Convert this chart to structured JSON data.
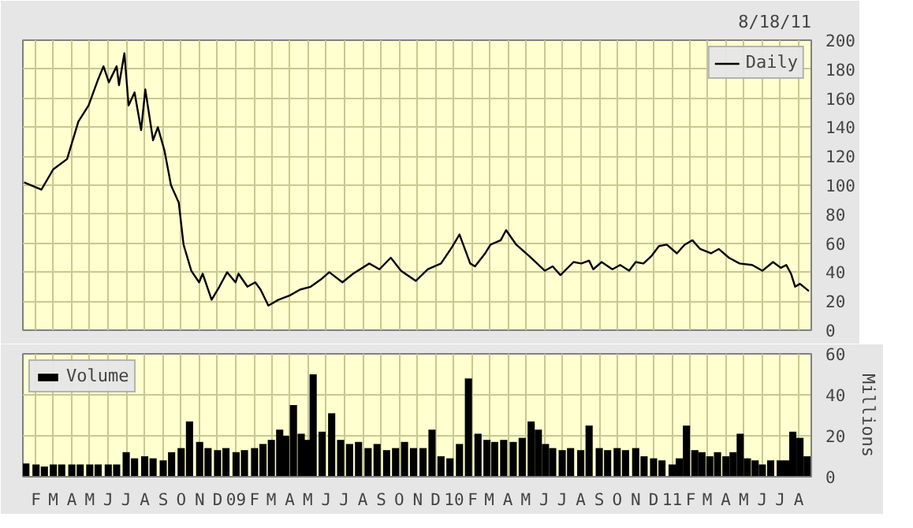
{
  "chart_data": [
    {
      "type": "line",
      "annotations": [
        "8/18/11"
      ],
      "legend": "top right",
      "grid": true,
      "tick_labels": "y",
      "xlim": [
        "2008-01-10",
        "2011-08-22"
      ],
      "ylim": [
        0,
        200
      ],
      "yticks": [
        0,
        20,
        40,
        60,
        80,
        100,
        120,
        140,
        160,
        180,
        200
      ],
      "xticks": [
        {
          "value": "2008-02-01",
          "label": null
        },
        {
          "value": "2008-03-01",
          "label": null
        },
        {
          "value": "2008-04-01",
          "label": null
        },
        {
          "value": "2008-05-01",
          "label": null
        },
        {
          "value": "2008-06-01",
          "label": null
        },
        {
          "value": "2008-07-01",
          "label": null
        },
        {
          "value": "2008-08-01",
          "label": null
        },
        {
          "value": "2008-09-01",
          "label": null
        },
        {
          "value": "2008-10-01",
          "label": null
        },
        {
          "value": "2008-11-01",
          "label": null
        },
        {
          "value": "2008-12-01",
          "label": null
        },
        {
          "value": "2009-01-01",
          "label": null
        },
        {
          "value": "2009-02-01",
          "label": null
        },
        {
          "value": "2009-03-01",
          "label": null
        },
        {
          "value": "2009-04-01",
          "label": null
        },
        {
          "value": "2009-05-01",
          "label": null
        },
        {
          "value": "2009-06-01",
          "label": null
        },
        {
          "value": "2009-07-01",
          "label": null
        },
        {
          "value": "2009-08-01",
          "label": null
        },
        {
          "value": "2009-09-01",
          "label": null
        },
        {
          "value": "2009-10-01",
          "label": null
        },
        {
          "value": "2009-11-01",
          "label": null
        },
        {
          "value": "2009-12-01",
          "label": null
        },
        {
          "value": "2010-01-01",
          "label": null
        },
        {
          "value": "2010-02-01",
          "label": null
        },
        {
          "value": "2010-03-01",
          "label": null
        },
        {
          "value": "2010-04-01",
          "label": null
        },
        {
          "value": "2010-05-01",
          "label": null
        },
        {
          "value": "2010-06-01",
          "label": null
        },
        {
          "value": "2010-07-01",
          "label": null
        },
        {
          "value": "2010-08-01",
          "label": null
        },
        {
          "value": "2010-09-01",
          "label": null
        },
        {
          "value": "2010-10-01",
          "label": null
        },
        {
          "value": "2010-11-01",
          "label": null
        },
        {
          "value": "2010-12-01",
          "label": null
        },
        {
          "value": "2011-01-01",
          "label": null
        },
        {
          "value": "2011-02-01",
          "label": null
        },
        {
          "value": "2011-03-01",
          "label": null
        },
        {
          "value": "2011-04-01",
          "label": null
        },
        {
          "value": "2011-05-01",
          "label": null
        },
        {
          "value": "2011-06-01",
          "label": null
        },
        {
          "value": "2011-07-01",
          "label": null
        },
        {
          "value": "2011-08-01",
          "label": null
        }
      ],
      "x": [
        "2008-01-12",
        "2008-02-10",
        "2008-03-01",
        "2008-03-24",
        "2008-04-12",
        "2008-04-29",
        "2008-05-15",
        "2008-05-24",
        "2008-06-02",
        "2008-06-15",
        "2008-06-19",
        "2008-06-28",
        "2008-07-05",
        "2008-07-15",
        "2008-07-26",
        "2008-08-02",
        "2008-08-15",
        "2008-08-23",
        "2008-09-03",
        "2008-09-14",
        "2008-09-27",
        "2008-10-05",
        "2008-10-18",
        "2008-10-31",
        "2008-11-06",
        "2008-11-21",
        "2008-12-04",
        "2008-12-17",
        "2008-12-31",
        "2009-01-05",
        "2009-01-20",
        "2009-02-02",
        "2009-02-11",
        "2009-02-24",
        "2009-03-13",
        "2009-04-01",
        "2009-04-18",
        "2009-05-06",
        "2009-05-23",
        "2009-06-06",
        "2009-06-28",
        "2009-07-16",
        "2009-08-12",
        "2009-08-29",
        "2009-09-17",
        "2009-10-04",
        "2009-10-29",
        "2009-11-18",
        "2009-12-10",
        "2009-12-28",
        "2010-01-10",
        "2010-01-28",
        "2010-02-05",
        "2010-02-22",
        "2010-03-03",
        "2010-03-20",
        "2010-03-29",
        "2010-04-15",
        "2010-05-07",
        "2010-05-20",
        "2010-06-02",
        "2010-06-15",
        "2010-06-28",
        "2010-07-20",
        "2010-08-02",
        "2010-08-15",
        "2010-08-22",
        "2010-09-05",
        "2010-09-23",
        "2010-10-06",
        "2010-10-21",
        "2010-11-01",
        "2010-11-14",
        "2010-11-27",
        "2010-12-10",
        "2010-12-23",
        "2011-01-09",
        "2011-01-22",
        "2011-02-04",
        "2011-02-17",
        "2011-03-07",
        "2011-03-20",
        "2011-04-06",
        "2011-04-24",
        "2011-05-15",
        "2011-06-01",
        "2011-06-19",
        "2011-07-02",
        "2011-07-11",
        "2011-07-19",
        "2011-07-26",
        "2011-08-03",
        "2011-08-18"
      ],
      "series": [
        {
          "name": "Daily",
          "color": "#000000",
          "values": [
            102,
            97,
            111,
            118,
            144,
            155,
            173,
            182,
            171,
            182,
            169,
            191,
            155,
            164,
            138,
            166,
            131,
            140,
            124,
            100,
            88,
            59,
            41,
            33,
            39,
            21,
            30,
            40,
            33,
            39,
            30,
            33,
            28,
            17,
            21,
            24,
            28,
            30,
            35,
            40,
            33,
            39,
            46,
            42,
            50,
            41,
            34,
            42,
            46,
            57,
            66,
            46,
            44,
            53,
            59,
            62,
            69,
            59,
            51,
            46,
            41,
            44,
            38,
            47,
            46,
            48,
            42,
            47,
            42,
            45,
            41,
            47,
            46,
            51,
            58,
            59,
            53,
            59,
            62,
            56,
            53,
            56,
            50,
            46,
            45,
            41,
            47,
            43,
            45,
            39,
            30,
            32,
            27
          ]
        }
      ]
    },
    {
      "type": "bar",
      "legend": "top left",
      "grid": true,
      "ylabel": "Millions",
      "xlim": [
        "2008-01-10",
        "2011-08-22"
      ],
      "ylim": [
        0,
        60
      ],
      "yticks": [
        0,
        20,
        40,
        60
      ],
      "xticks": [
        {
          "value": "2008-02-01",
          "label": "F"
        },
        {
          "value": "2008-03-01",
          "label": "M"
        },
        {
          "value": "2008-04-01",
          "label": "A"
        },
        {
          "value": "2008-05-01",
          "label": "M"
        },
        {
          "value": "2008-06-01",
          "label": "J"
        },
        {
          "value": "2008-07-01",
          "label": "J"
        },
        {
          "value": "2008-08-01",
          "label": "A"
        },
        {
          "value": "2008-09-01",
          "label": "S"
        },
        {
          "value": "2008-10-01",
          "label": "O"
        },
        {
          "value": "2008-11-01",
          "label": "N"
        },
        {
          "value": "2008-12-01",
          "label": "D"
        },
        {
          "value": "2009-01-01",
          "label": "09"
        },
        {
          "value": "2009-02-01",
          "label": "F"
        },
        {
          "value": "2009-03-01",
          "label": "M"
        },
        {
          "value": "2009-04-01",
          "label": "A"
        },
        {
          "value": "2009-05-01",
          "label": "M"
        },
        {
          "value": "2009-06-01",
          "label": "J"
        },
        {
          "value": "2009-07-01",
          "label": "J"
        },
        {
          "value": "2009-08-01",
          "label": "A"
        },
        {
          "value": "2009-09-01",
          "label": "S"
        },
        {
          "value": "2009-10-01",
          "label": "O"
        },
        {
          "value": "2009-11-01",
          "label": "N"
        },
        {
          "value": "2009-12-01",
          "label": "D"
        },
        {
          "value": "2010-01-01",
          "label": "10"
        },
        {
          "value": "2010-02-01",
          "label": "F"
        },
        {
          "value": "2010-03-01",
          "label": "M"
        },
        {
          "value": "2010-04-01",
          "label": "A"
        },
        {
          "value": "2010-05-01",
          "label": "M"
        },
        {
          "value": "2010-06-01",
          "label": "J"
        },
        {
          "value": "2010-07-01",
          "label": "J"
        },
        {
          "value": "2010-08-01",
          "label": "A"
        },
        {
          "value": "2010-09-01",
          "label": "S"
        },
        {
          "value": "2010-10-01",
          "label": "O"
        },
        {
          "value": "2010-11-01",
          "label": "N"
        },
        {
          "value": "2010-12-01",
          "label": "D"
        },
        {
          "value": "2011-01-01",
          "label": "11"
        },
        {
          "value": "2011-02-01",
          "label": "F"
        },
        {
          "value": "2011-03-01",
          "label": "M"
        },
        {
          "value": "2011-04-01",
          "label": "A"
        },
        {
          "value": "2011-05-01",
          "label": "M"
        },
        {
          "value": "2011-06-01",
          "label": "J"
        },
        {
          "value": "2011-07-01",
          "label": "J"
        },
        {
          "value": "2011-08-01",
          "label": "A"
        }
      ],
      "x": [
        "2008-01-15",
        "2008-02-01",
        "2008-02-15",
        "2008-03-01",
        "2008-03-15",
        "2008-04-01",
        "2008-04-15",
        "2008-05-01",
        "2008-05-15",
        "2008-06-01",
        "2008-06-15",
        "2008-07-01",
        "2008-07-15",
        "2008-08-01",
        "2008-08-15",
        "2008-09-01",
        "2008-09-15",
        "2008-10-01",
        "2008-10-15",
        "2008-11-01",
        "2008-11-15",
        "2008-12-01",
        "2008-12-15",
        "2009-01-01",
        "2009-01-15",
        "2009-02-01",
        "2009-02-15",
        "2009-03-01",
        "2009-03-15",
        "2009-03-25",
        "2009-04-07",
        "2009-04-20",
        "2009-05-01",
        "2009-05-10",
        "2009-05-25",
        "2009-06-10",
        "2009-06-25",
        "2009-07-10",
        "2009-07-25",
        "2009-08-10",
        "2009-08-25",
        "2009-09-10",
        "2009-09-25",
        "2009-10-10",
        "2009-10-25",
        "2009-11-10",
        "2009-11-25",
        "2009-12-10",
        "2009-12-25",
        "2010-01-10",
        "2010-01-25",
        "2010-02-10",
        "2010-02-25",
        "2010-03-10",
        "2010-03-25",
        "2010-04-10",
        "2010-04-25",
        "2010-05-10",
        "2010-05-22",
        "2010-06-03",
        "2010-06-15",
        "2010-07-01",
        "2010-07-15",
        "2010-08-01",
        "2010-08-15",
        "2010-09-01",
        "2010-09-15",
        "2010-10-01",
        "2010-10-15",
        "2010-11-01",
        "2010-11-15",
        "2010-12-01",
        "2010-12-15",
        "2011-01-01",
        "2011-01-13",
        "2011-01-25",
        "2011-02-08",
        "2011-02-20",
        "2011-03-05",
        "2011-03-18",
        "2011-04-01",
        "2011-04-13",
        "2011-04-25",
        "2011-05-07",
        "2011-05-20",
        "2011-06-01",
        "2011-06-15",
        "2011-07-01",
        "2011-07-12",
        "2011-07-22",
        "2011-08-03",
        "2011-08-15"
      ],
      "series": [
        {
          "name": "Volume",
          "color": "#000000",
          "values": [
            6.5,
            6,
            5,
            6,
            6,
            6,
            6,
            6,
            6,
            6,
            6,
            12,
            9,
            10,
            9,
            8,
            12,
            14,
            27,
            17,
            14,
            13,
            14,
            12,
            13,
            14,
            16,
            18,
            23,
            20,
            35,
            21,
            18,
            50,
            22,
            31,
            18,
            16,
            17,
            14,
            16,
            13,
            14,
            17,
            14,
            14,
            23,
            10,
            9,
            16,
            48,
            21,
            18,
            17,
            18,
            17,
            19,
            27,
            23,
            16,
            14,
            13,
            14,
            13,
            25,
            14,
            13,
            14,
            13,
            14,
            10,
            9,
            8,
            6,
            9,
            25,
            13,
            12,
            10,
            12,
            10,
            12,
            21,
            9,
            8,
            6,
            8,
            8,
            8,
            22,
            19,
            10
          ]
        }
      ]
    }
  ]
}
